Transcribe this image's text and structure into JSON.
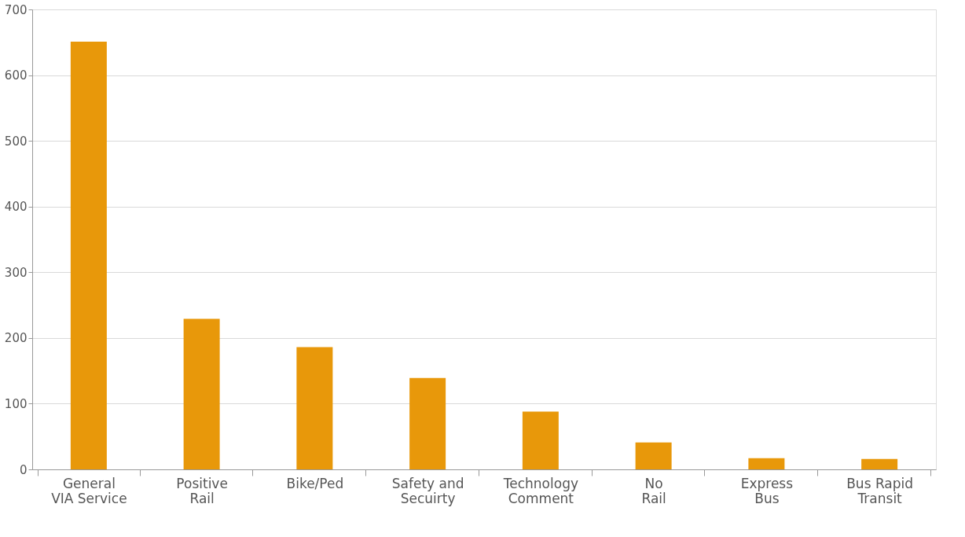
{
  "chart_data": {
    "type": "bar",
    "categories": [
      "General VIA Service",
      "Positive Rail",
      "Bike/Ped",
      "Safety and Secuirty",
      "Technology Comment",
      "No Rail",
      "Express Bus",
      "Bus Rapid Transit"
    ],
    "values": [
      651,
      229,
      186,
      139,
      88,
      41,
      17,
      16
    ],
    "color": "#e8980a",
    "ylim": [
      0,
      700
    ],
    "yticks": [
      0,
      100,
      200,
      300,
      400,
      500,
      600,
      700
    ],
    "grid": "y"
  }
}
